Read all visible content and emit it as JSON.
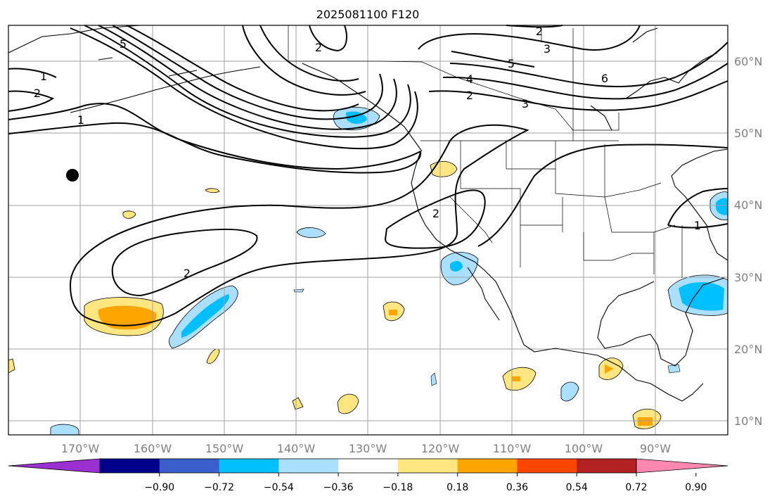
{
  "title": "2025081100 F120",
  "lat_labels": [
    "60°N",
    "50°N",
    "40°N",
    "30°N",
    "20°N",
    "10°N"
  ],
  "lon_labels": [
    "170°W",
    "160°W",
    "150°W",
    "140°W",
    "130°W",
    "120°W",
    "110°W",
    "100°W",
    "90°W"
  ],
  "contour_labels": [
    "1",
    "2",
    "5",
    "2",
    "3",
    "5",
    "4",
    "2",
    "3",
    "6",
    "1",
    "2",
    "2",
    "1",
    "2"
  ],
  "colorbar": {
    "colors": [
      "#9b30d0",
      "#00008b",
      "#3a5fcd",
      "#00bfff",
      "#aadfff",
      "#ffffff",
      "#ffe680",
      "#ffa500",
      "#ff4500",
      "#b22222",
      "#ff88b0"
    ],
    "tick_labels": [
      "−0.90",
      "−0.72",
      "−0.54",
      "−0.36",
      "−0.18",
      "0.18",
      "0.36",
      "0.54",
      "0.72",
      "0.90"
    ]
  },
  "marker": "station-dot"
}
